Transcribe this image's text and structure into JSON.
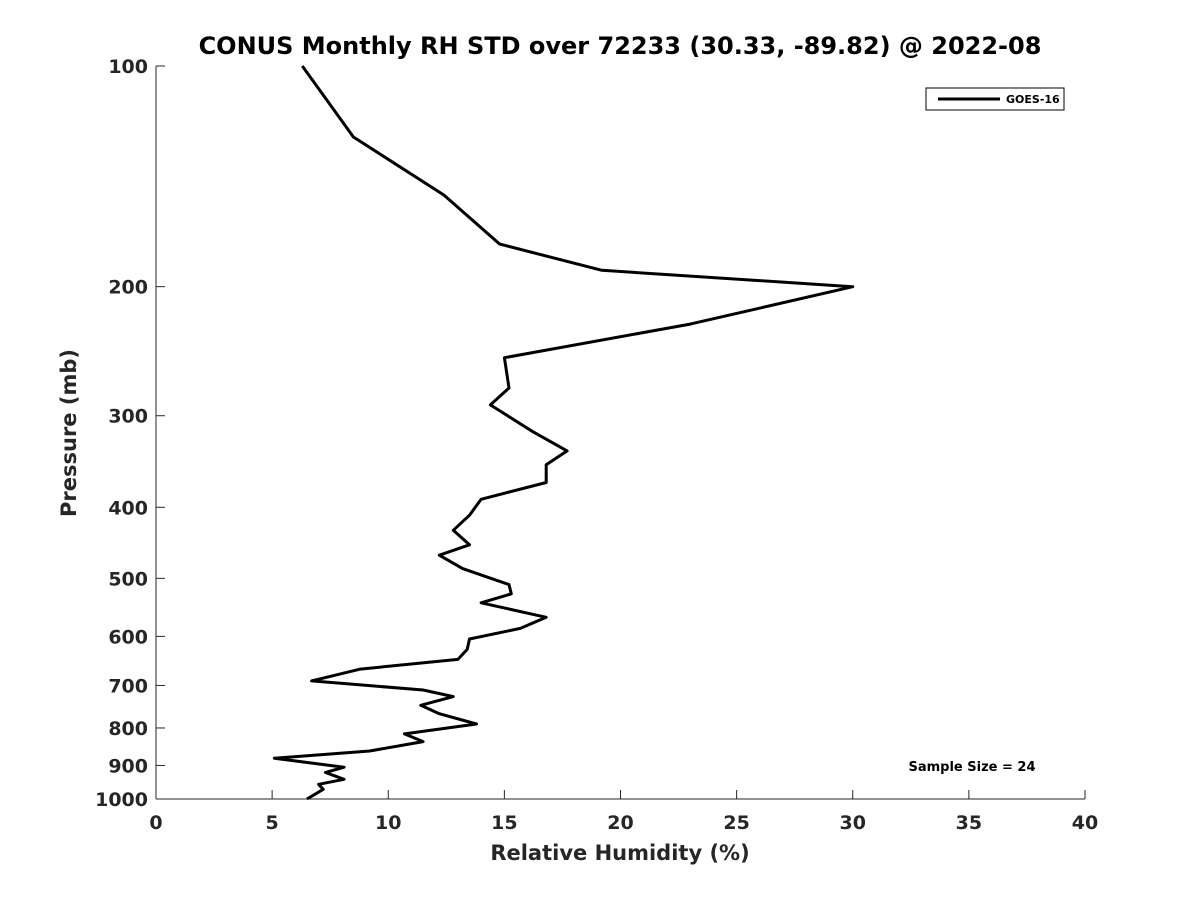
{
  "chart_data": {
    "type": "line",
    "title": "CONUS Monthly RH STD over 72233 (30.33, -89.82) @ 2022-08",
    "xlabel": "Relative Humidity (%)",
    "ylabel": "Pressure (mb)",
    "xlim": [
      0,
      40
    ],
    "ylim": [
      100,
      1000
    ],
    "y_scale": "log",
    "y_reversed": true,
    "x_ticks": [
      0,
      5,
      10,
      15,
      20,
      25,
      30,
      35,
      40
    ],
    "y_ticks": [
      100,
      200,
      300,
      400,
      500,
      600,
      700,
      800,
      900,
      1000
    ],
    "grid": false,
    "legend_position": "top-right",
    "series": [
      {
        "name": "GOES-16",
        "color": "#000000",
        "points": [
          [
            6.3,
            100
          ],
          [
            8.5,
            125
          ],
          [
            12.4,
            150
          ],
          [
            14.8,
            175
          ],
          [
            19.2,
            190
          ],
          [
            30.0,
            200
          ],
          [
            23.0,
            225
          ],
          [
            15.0,
            250
          ],
          [
            15.2,
            275
          ],
          [
            14.4,
            290
          ],
          [
            16.2,
            315
          ],
          [
            17.7,
            335
          ],
          [
            16.8,
            350
          ],
          [
            16.8,
            370
          ],
          [
            14.0,
            390
          ],
          [
            13.5,
            410
          ],
          [
            12.8,
            430
          ],
          [
            13.5,
            450
          ],
          [
            12.2,
            465
          ],
          [
            13.2,
            485
          ],
          [
            15.2,
            510
          ],
          [
            15.3,
            525
          ],
          [
            14.0,
            540
          ],
          [
            16.8,
            565
          ],
          [
            15.7,
            585
          ],
          [
            13.5,
            605
          ],
          [
            13.4,
            625
          ],
          [
            13.0,
            645
          ],
          [
            8.8,
            665
          ],
          [
            6.7,
            690
          ],
          [
            11.5,
            710
          ],
          [
            12.8,
            725
          ],
          [
            11.4,
            745
          ],
          [
            12.2,
            765
          ],
          [
            13.8,
            790
          ],
          [
            10.7,
            815
          ],
          [
            11.5,
            835
          ],
          [
            9.2,
            860
          ],
          [
            5.1,
            880
          ],
          [
            8.1,
            905
          ],
          [
            7.3,
            920
          ],
          [
            8.1,
            940
          ],
          [
            7.0,
            955
          ],
          [
            7.2,
            970
          ],
          [
            6.5,
            1000
          ]
        ]
      }
    ],
    "annotation": "Sample Size = 24"
  }
}
